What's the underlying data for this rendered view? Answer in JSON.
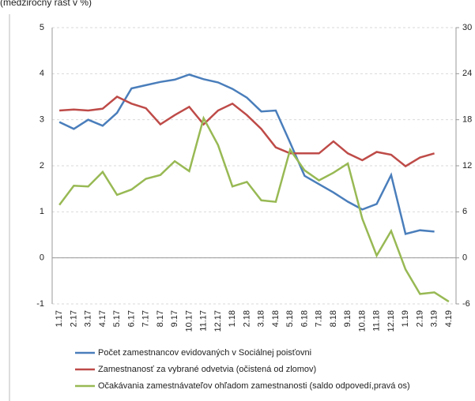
{
  "chart_data": {
    "type": "line",
    "title": "(medziročný rast v %)",
    "categories": [
      "1.17",
      "2.17",
      "3.17",
      "4.17",
      "5.17",
      "6.17",
      "7.17",
      "8.17",
      "9.17",
      "10.17",
      "11.17",
      "12.17",
      "1.18",
      "2.18",
      "3.18",
      "4.18",
      "5.18",
      "6.18",
      "7.18",
      "8.18",
      "9.18",
      "10.18",
      "11.18",
      "12.18",
      "1.19",
      "2.19",
      "3.19",
      "4.19"
    ],
    "series": [
      {
        "name": "Počet zamestnancov evidovaných v Sociálnej poisťovni",
        "color": "#4a7ebb",
        "values": [
          2.95,
          2.8,
          3.0,
          2.87,
          3.15,
          3.68,
          3.75,
          3.82,
          3.87,
          3.98,
          3.88,
          3.81,
          3.67,
          3.48,
          3.18,
          3.2,
          2.5,
          1.78,
          1.6,
          1.42,
          1.22,
          1.05,
          1.17,
          1.8,
          0.52,
          0.6,
          0.57,
          null
        ]
      },
      {
        "name": "Zamestnanosť za vybrané odvetvia (očistená od zlomov)",
        "color": "#be4b48",
        "values": [
          3.2,
          3.22,
          3.2,
          3.24,
          3.5,
          3.35,
          3.25,
          2.9,
          3.1,
          3.28,
          2.9,
          3.2,
          3.35,
          3.1,
          2.8,
          2.4,
          2.27,
          2.27,
          2.27,
          2.53,
          2.27,
          2.12,
          2.3,
          2.24,
          1.99,
          2.18,
          2.27,
          null
        ]
      },
      {
        "name": "Očakávania zamestnávateľov ohľadom zamestnanosti (saldo odpovedí,pravá os)",
        "color": "#98b954",
        "axis": "y2",
        "values": [
          6.9,
          9.4,
          9.3,
          11.2,
          8.2,
          8.9,
          10.3,
          10.8,
          12.6,
          11.3,
          18.2,
          14.7,
          9.3,
          9.9,
          7.5,
          7.3,
          14.1,
          11.4,
          10.1,
          11.1,
          12.3,
          5.1,
          0.3,
          3.5,
          -1.5,
          -4.7,
          -4.5,
          -5.7
        ]
      }
    ],
    "ylim": [
      -1,
      5
    ],
    "yticks": [
      -1,
      0,
      1,
      2,
      3,
      4,
      5
    ],
    "y2lim": [
      -6,
      30
    ],
    "y2ticks": [
      -6,
      0,
      6,
      12,
      18,
      24,
      30
    ],
    "grid": true,
    "legend": "bottom"
  }
}
